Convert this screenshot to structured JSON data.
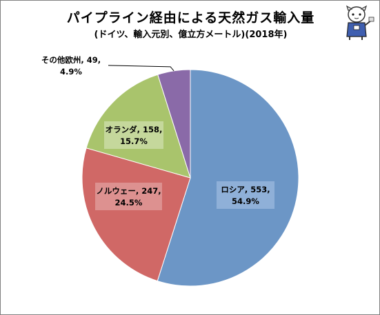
{
  "title": "パイプライン経由による天然ガス輸入量",
  "subtitle": "(ドイツ、輸入元別、億立方メートル)(2018年)",
  "chart_data": {
    "type": "pie",
    "title": "パイプライン経由による天然ガス輸入量",
    "subtitle": "(ドイツ、輸入元別、億立方メートル)(2018年)",
    "categories": [
      "ロシア",
      "ノルウェー",
      "オランダ",
      "その他欧州"
    ],
    "values": [
      553,
      247,
      158,
      49
    ],
    "percents": [
      "54.9%",
      "24.5%",
      "15.7%",
      "4.9%"
    ],
    "labels": [
      {
        "line1": "ロシア, 553,",
        "line2": "54.9%"
      },
      {
        "line1": "ノルウェー, 247,",
        "line2": "24.5%"
      },
      {
        "line1": "オランダ, 158,",
        "line2": "15.7%"
      },
      {
        "line1": "その他欧州, 49,",
        "line2": "4.9%"
      }
    ],
    "colors": [
      "#6c96c6",
      "#d06866",
      "#a9c46c",
      "#8a6aa8"
    ],
    "label_bg_colors": [
      "#8fb0d8",
      "#dd9190",
      "#c5d89c",
      "none"
    ],
    "legend": "none"
  }
}
